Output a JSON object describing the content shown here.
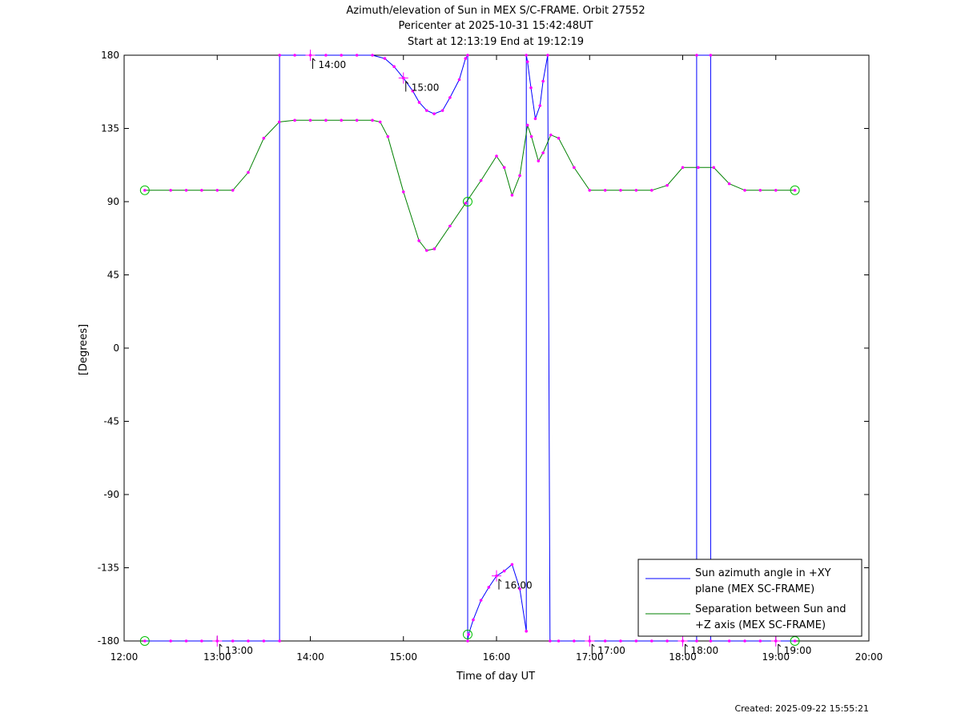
{
  "chart_data": {
    "type": "line",
    "title": [
      "Azimuth/elevation of Sun in MEX S/C-FRAME.  Orbit 27552",
      "Pericenter at 2025-10-31 15:42:48UT",
      "Start at 12:13:19 End at 19:12:19"
    ],
    "xlabel": "Time of day UT",
    "ylabel": "[Degrees]",
    "x_unit": "hours of day",
    "xlim": [
      12,
      20
    ],
    "ylim": [
      -180,
      180
    ],
    "x_ticks": [
      12,
      13,
      14,
      15,
      16,
      17,
      18,
      19,
      20
    ],
    "x_tick_labels": [
      "12:00",
      "13:00",
      "14:00",
      "15:00",
      "16:00",
      "17:00",
      "18:00",
      "19:00",
      "20:00"
    ],
    "y_ticks": [
      180,
      135,
      90,
      45,
      0,
      -45,
      -90,
      -135,
      -180
    ],
    "y_tick_labels": [
      "180",
      "135",
      "90",
      "45",
      "0",
      "-45",
      "-90",
      "-135",
      "-180"
    ],
    "grid": false,
    "legend_position": "bottom-right",
    "series": [
      {
        "name": "Sun azimuth angle in +XY plane (MEX SC-FRAME)",
        "legend_lines": [
          "Sun azimuth angle in +XY",
          "plane (MEX SC-FRAME)"
        ],
        "color": "#0000ff",
        "points": [
          [
            12.222,
            -180
          ],
          [
            12.5,
            -180
          ],
          [
            12.667,
            -180
          ],
          [
            12.833,
            -180
          ],
          [
            13.0,
            -180
          ],
          [
            13.167,
            -180
          ],
          [
            13.333,
            -180
          ],
          [
            13.5,
            -180
          ],
          [
            13.67,
            -180
          ],
          [
            13.67,
            180
          ],
          [
            13.833,
            180
          ],
          [
            14.0,
            180
          ],
          [
            14.167,
            180
          ],
          [
            14.333,
            180
          ],
          [
            14.5,
            180
          ],
          [
            14.667,
            180
          ],
          [
            14.8,
            178
          ],
          [
            14.9,
            173
          ],
          [
            15.0,
            166
          ],
          [
            15.1,
            158
          ],
          [
            15.17,
            151
          ],
          [
            15.25,
            146
          ],
          [
            15.33,
            144
          ],
          [
            15.42,
            146
          ],
          [
            15.5,
            154
          ],
          [
            15.6,
            165
          ],
          [
            15.667,
            178
          ],
          [
            15.69,
            180
          ],
          [
            15.69,
            -180
          ],
          [
            15.7,
            -176
          ],
          [
            15.75,
            -167
          ],
          [
            15.833,
            -155
          ],
          [
            15.917,
            -147
          ],
          [
            16.0,
            -140
          ],
          [
            16.083,
            -137
          ],
          [
            16.167,
            -133
          ],
          [
            16.25,
            -148
          ],
          [
            16.32,
            -174
          ],
          [
            16.32,
            180
          ],
          [
            16.333,
            176
          ],
          [
            16.37,
            160
          ],
          [
            16.417,
            141
          ],
          [
            16.467,
            149
          ],
          [
            16.5,
            164
          ],
          [
            16.55,
            180
          ],
          [
            16.575,
            -180
          ],
          [
            16.667,
            -180
          ],
          [
            16.833,
            -180
          ],
          [
            17.0,
            -180
          ],
          [
            17.167,
            -180
          ],
          [
            17.333,
            -180
          ],
          [
            17.5,
            -180
          ],
          [
            17.667,
            -180
          ],
          [
            17.833,
            -180
          ],
          [
            18.0,
            -180
          ],
          [
            18.15,
            -180
          ],
          [
            18.15,
            180
          ],
          [
            18.3,
            180
          ],
          [
            18.3,
            -180
          ],
          [
            18.5,
            -180
          ],
          [
            18.667,
            -180
          ],
          [
            18.833,
            -180
          ],
          [
            19.0,
            -180
          ],
          [
            19.205,
            -180
          ]
        ]
      },
      {
        "name": "Separation between Sun and +Z axis (MEX SC-FRAME)",
        "legend_lines": [
          "Separation between Sun and",
          "+Z axis (MEX SC-FRAME)"
        ],
        "color": "#008000",
        "points": [
          [
            12.222,
            97
          ],
          [
            12.5,
            97
          ],
          [
            12.667,
            97
          ],
          [
            12.833,
            97
          ],
          [
            13.0,
            97
          ],
          [
            13.167,
            97
          ],
          [
            13.333,
            108
          ],
          [
            13.5,
            129
          ],
          [
            13.667,
            139
          ],
          [
            13.833,
            140
          ],
          [
            14.0,
            140
          ],
          [
            14.167,
            140
          ],
          [
            14.333,
            140
          ],
          [
            14.5,
            140
          ],
          [
            14.667,
            140
          ],
          [
            14.75,
            139
          ],
          [
            14.833,
            130
          ],
          [
            15.0,
            96
          ],
          [
            15.167,
            66
          ],
          [
            15.25,
            60
          ],
          [
            15.333,
            61
          ],
          [
            15.5,
            75
          ],
          [
            15.667,
            89
          ],
          [
            15.833,
            103
          ],
          [
            16.0,
            118
          ],
          [
            16.083,
            111
          ],
          [
            16.167,
            94
          ],
          [
            16.25,
            106
          ],
          [
            16.333,
            137
          ],
          [
            16.375,
            130
          ],
          [
            16.45,
            115
          ],
          [
            16.5,
            120
          ],
          [
            16.583,
            131
          ],
          [
            16.667,
            129
          ],
          [
            16.833,
            111
          ],
          [
            17.0,
            97
          ],
          [
            17.167,
            97
          ],
          [
            17.333,
            97
          ],
          [
            17.5,
            97
          ],
          [
            17.667,
            97
          ],
          [
            17.833,
            100
          ],
          [
            18.0,
            111
          ],
          [
            18.167,
            111
          ],
          [
            18.333,
            111
          ],
          [
            18.5,
            101
          ],
          [
            18.667,
            97
          ],
          [
            18.833,
            97
          ],
          [
            19.0,
            97
          ],
          [
            19.205,
            97
          ]
        ]
      }
    ],
    "markers_color": "#ff00ff",
    "endpoint_marker_color": "#00c000",
    "hour_annotations": [
      {
        "label": "13:00",
        "x": 13.0,
        "y": -180
      },
      {
        "label": "14:00",
        "x": 14.0,
        "y": 180
      },
      {
        "label": "15:00",
        "x": 15.0,
        "y": 166
      },
      {
        "label": "16:00",
        "x": 16.0,
        "y": -140
      },
      {
        "label": "17:00",
        "x": 17.0,
        "y": -180
      },
      {
        "label": "18:00",
        "x": 18.0,
        "y": -180
      },
      {
        "label": "19:00",
        "x": 19.0,
        "y": -180
      }
    ],
    "endpoints": [
      [
        12.222,
        97
      ],
      [
        12.222,
        -180
      ],
      [
        19.205,
        97
      ],
      [
        19.205,
        -180
      ],
      [
        15.69,
        90
      ],
      [
        15.69,
        -176
      ]
    ]
  },
  "footer": {
    "created": "Created: 2025-09-22 15:55:21"
  }
}
